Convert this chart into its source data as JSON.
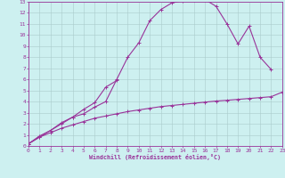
{
  "xlabel": "Windchill (Refroidissement éolien,°C)",
  "xlim": [
    0,
    23
  ],
  "ylim": [
    0,
    13
  ],
  "xticks": [
    0,
    1,
    2,
    3,
    4,
    5,
    6,
    7,
    8,
    9,
    10,
    11,
    12,
    13,
    14,
    15,
    16,
    17,
    18,
    19,
    20,
    21,
    22,
    23
  ],
  "yticks": [
    0,
    1,
    2,
    3,
    4,
    5,
    6,
    7,
    8,
    9,
    10,
    11,
    12,
    13
  ],
  "bg_color": "#cdf0f0",
  "grid_color": "#aacccc",
  "line_color": "#993399",
  "curve1_x": [
    0,
    1,
    2,
    3,
    4,
    5,
    6,
    7,
    8,
    9,
    10,
    11,
    12,
    13,
    14,
    15,
    16,
    17,
    18,
    19,
    20,
    21,
    22,
    23
  ],
  "curve1_y": [
    0.2,
    0.8,
    1.2,
    1.6,
    1.9,
    2.2,
    2.5,
    2.7,
    2.9,
    3.1,
    3.25,
    3.4,
    3.55,
    3.65,
    3.75,
    3.85,
    3.95,
    4.05,
    4.12,
    4.2,
    4.28,
    4.36,
    4.44,
    4.85
  ],
  "curve2_x": [
    0,
    1,
    2,
    3,
    4,
    5,
    6,
    7,
    8
  ],
  "curve2_y": [
    0.2,
    0.9,
    1.4,
    2.1,
    2.6,
    3.3,
    3.9,
    5.3,
    5.9
  ],
  "curve3_x": [
    0,
    1,
    2,
    3,
    4,
    5,
    6,
    7,
    8,
    9,
    10,
    11,
    12,
    13,
    14,
    15,
    16,
    17,
    18,
    19,
    20,
    21,
    22
  ],
  "curve3_y": [
    0.2,
    0.8,
    1.4,
    2.0,
    2.6,
    2.9,
    3.5,
    4.0,
    6.0,
    8.0,
    9.3,
    11.3,
    12.3,
    12.9,
    13.1,
    13.2,
    13.2,
    12.6,
    11.0,
    9.2,
    10.8,
    8.0,
    6.9
  ]
}
